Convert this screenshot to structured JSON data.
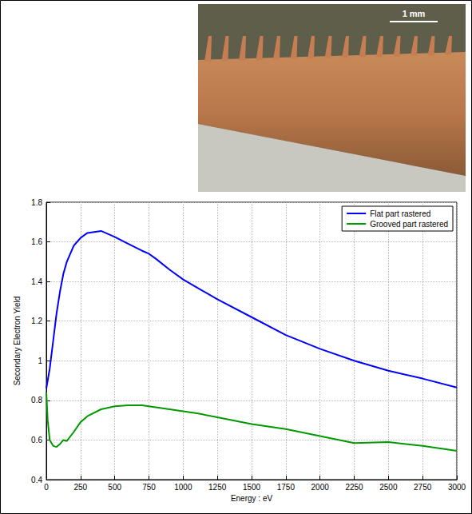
{
  "chart_data": {
    "type": "line",
    "x_label": "Energy : eV",
    "y_label": "Secondary Electron Yield",
    "annotations": [
      "1 mm"
    ],
    "x": [
      0,
      10,
      25,
      50,
      75,
      100,
      125,
      150,
      200,
      250,
      300,
      400,
      500,
      600,
      700,
      750,
      800,
      900,
      1000,
      1100,
      1250,
      1500,
      1750,
      2000,
      2250,
      2500,
      2750,
      3000
    ],
    "series": [
      {
        "name": "Flat part rastered",
        "color": "#0000ff",
        "values": [
          0.86,
          0.9,
          0.96,
          1.1,
          1.24,
          1.35,
          1.44,
          1.5,
          1.58,
          1.62,
          1.645,
          1.655,
          1.625,
          1.59,
          1.555,
          1.54,
          1.515,
          1.46,
          1.41,
          1.37,
          1.31,
          1.22,
          1.13,
          1.06,
          1.0,
          0.95,
          0.91,
          0.865
        ]
      },
      {
        "name": "Grooved part rastered",
        "color": "#009900",
        "values": [
          0.84,
          0.7,
          0.6,
          0.57,
          0.565,
          0.58,
          0.6,
          0.595,
          0.64,
          0.69,
          0.72,
          0.755,
          0.77,
          0.775,
          0.775,
          0.77,
          0.765,
          0.755,
          0.745,
          0.735,
          0.715,
          0.68,
          0.655,
          0.62,
          0.585,
          0.59,
          0.57,
          0.545
        ]
      }
    ],
    "xlim": [
      0,
      3000
    ],
    "xticks": [
      0,
      250,
      500,
      750,
      1000,
      1250,
      1500,
      1750,
      2000,
      2250,
      2500,
      2750,
      3000
    ],
    "ylim": [
      0.4,
      1.8
    ],
    "yticks": [
      0.4,
      0.6,
      0.8,
      1,
      1.2,
      1.4,
      1.6,
      1.8
    ],
    "grid": true,
    "legend": "upper right"
  }
}
